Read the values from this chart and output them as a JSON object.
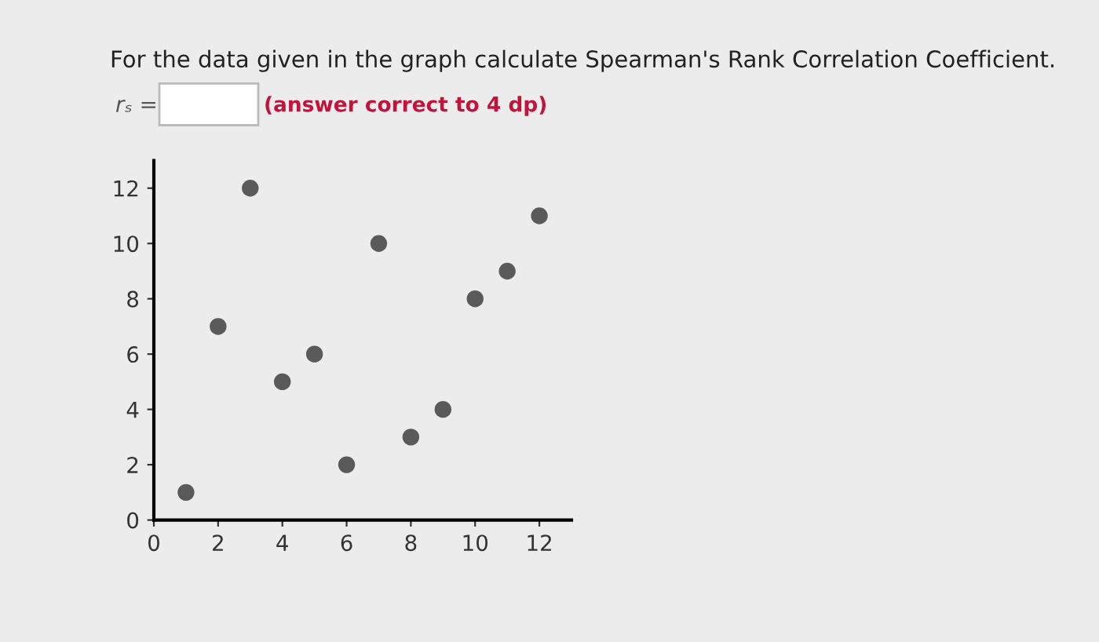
{
  "chart_data": {
    "type": "scatter",
    "title": "For the data given in the graph calculate Spearman's Rank Correlation Coefficient.",
    "annotations": [
      "rₛ =",
      "(answer correct to 4 dp)"
    ],
    "x": [
      1,
      2,
      3,
      4,
      5,
      6,
      7,
      8,
      9,
      10,
      11,
      12
    ],
    "values": [
      1,
      7,
      12,
      5,
      6,
      2,
      10,
      3,
      4,
      8,
      9,
      11
    ],
    "color": "#5a5a5a",
    "marker": "circle",
    "xlim": [
      0,
      13
    ],
    "ylim": [
      0,
      13
    ],
    "xticks": [
      0,
      2,
      4,
      6,
      8,
      10,
      12
    ],
    "yticks": [
      0,
      2,
      4,
      6,
      8,
      10,
      12
    ],
    "grid": false
  }
}
